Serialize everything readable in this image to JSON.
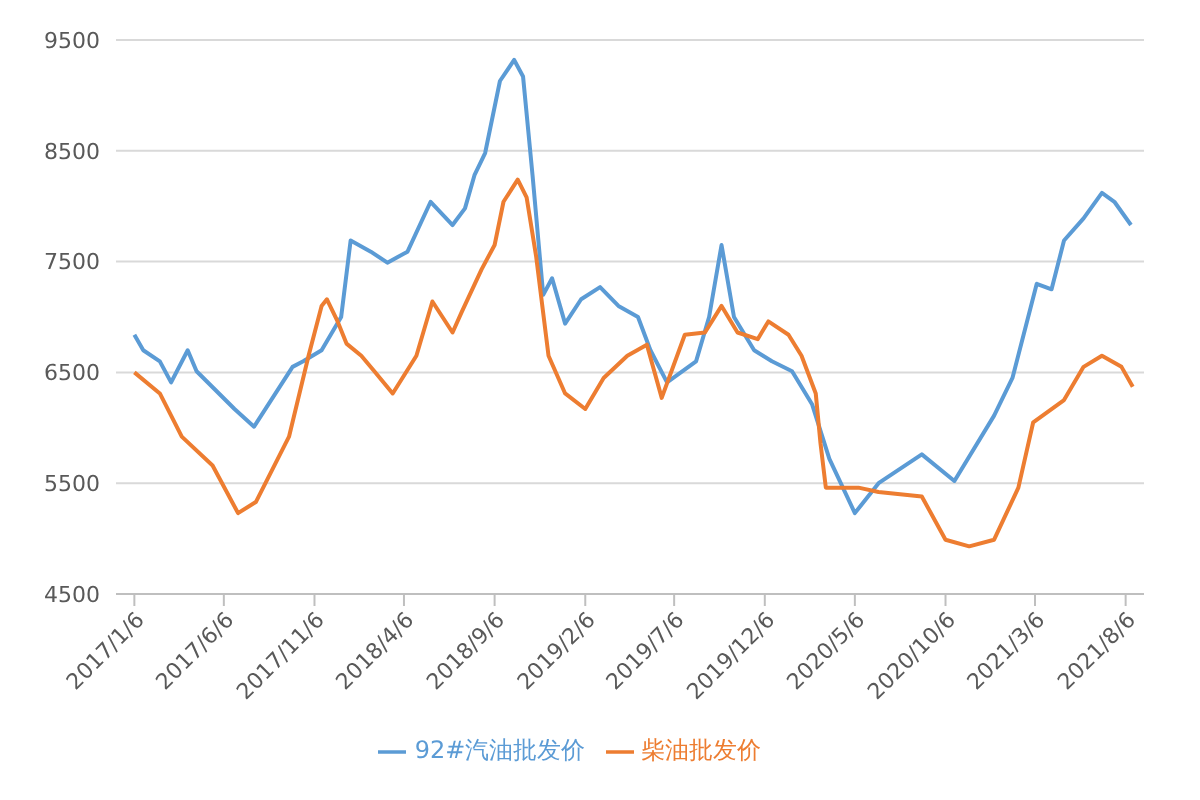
{
  "chart_data": {
    "type": "line",
    "xlim": [
      "2016-12-06",
      "2021-09-06"
    ],
    "xticks": [
      {
        "value": "2017-01-06",
        "label": "2017/1/6"
      },
      {
        "value": "2017-06-06",
        "label": "2017/6/6"
      },
      {
        "value": "2017-11-06",
        "label": "2017/11/6"
      },
      {
        "value": "2018-04-06",
        "label": "2018/4/6"
      },
      {
        "value": "2018-09-06",
        "label": "2018/9/6"
      },
      {
        "value": "2019-02-06",
        "label": "2019/2/6"
      },
      {
        "value": "2019-07-06",
        "label": "2019/7/6"
      },
      {
        "value": "2019-12-06",
        "label": "2019/12/6"
      },
      {
        "value": "2020-05-06",
        "label": "2020/5/6"
      },
      {
        "value": "2020-10-06",
        "label": "2020/10/6"
      },
      {
        "value": "2021-03-06",
        "label": "2021/3/6"
      },
      {
        "value": "2021-08-06",
        "label": "2021/8/6"
      }
    ],
    "ylim": [
      4500,
      9500
    ],
    "yticks": [
      4500,
      5500,
      6500,
      7500,
      8500,
      9500
    ],
    "grid": "y",
    "legend": "bottom",
    "series": [
      {
        "name": "92#汽油批发价",
        "color": "#5b9bd5",
        "x": [
          "2017-01-06",
          "2017-01-21",
          "2017-02-18",
          "2017-03-09",
          "2017-04-06",
          "2017-04-21",
          "2017-06-24",
          "2017-07-27",
          "2017-09-30",
          "2017-10-18",
          "2017-11-18",
          "2017-12-21",
          "2018-01-06",
          "2018-02-09",
          "2018-03-09",
          "2018-04-12",
          "2018-05-21",
          "2018-06-27",
          "2018-07-18",
          "2018-08-03",
          "2018-08-21",
          "2018-09-15",
          "2018-10-09",
          "2018-10-24",
          "2018-11-09",
          "2018-11-27",
          "2018-12-12",
          "2019-01-03",
          "2019-01-30",
          "2019-03-03",
          "2019-04-03",
          "2019-05-06",
          "2019-05-27",
          "2019-06-24",
          "2019-08-12",
          "2019-09-03",
          "2019-09-24",
          "2019-10-15",
          "2019-11-18",
          "2019-12-18",
          "2020-01-21",
          "2020-02-24",
          "2020-03-24",
          "2020-05-06",
          "2020-06-15",
          "2020-08-27",
          "2020-10-21",
          "2020-12-27",
          "2021-01-27",
          "2021-03-09",
          "2021-04-03",
          "2021-04-24",
          "2021-05-27",
          "2021-06-27",
          "2021-07-18",
          "2021-08-15"
        ],
        "values": [
          6840,
          6700,
          6600,
          6410,
          6700,
          6510,
          6170,
          6010,
          6550,
          6600,
          6700,
          7000,
          7690,
          7590,
          7490,
          7590,
          8040,
          7830,
          7980,
          8280,
          8480,
          9130,
          9320,
          9170,
          8280,
          7200,
          7350,
          6940,
          7160,
          7270,
          7100,
          7000,
          6700,
          6410,
          6600,
          7000,
          7650,
          7000,
          6700,
          6600,
          6510,
          6210,
          5720,
          5230,
          5500,
          5760,
          5520,
          6110,
          6450,
          7300,
          7250,
          7690,
          7890,
          8120,
          8040,
          7830
        ]
      },
      {
        "name": "柴油批发价",
        "color": "#ed7d31",
        "x": [
          "2017-01-06",
          "2017-02-18",
          "2017-03-27",
          "2017-05-18",
          "2017-06-30",
          "2017-07-30",
          "2017-09-24",
          "2017-10-27",
          "2017-11-18",
          "2017-11-27",
          "2017-12-15",
          "2017-12-30",
          "2018-01-24",
          "2018-02-15",
          "2018-03-18",
          "2018-04-27",
          "2018-05-24",
          "2018-06-27",
          "2018-07-12",
          "2018-08-15",
          "2018-09-06",
          "2018-09-21",
          "2018-10-15",
          "2018-10-30",
          "2018-11-15",
          "2018-12-06",
          "2019-01-03",
          "2019-02-06",
          "2019-03-09",
          "2019-04-18",
          "2019-05-21",
          "2019-06-15",
          "2019-07-24",
          "2019-08-27",
          "2019-09-24",
          "2019-10-21",
          "2019-11-24",
          "2019-12-12",
          "2020-01-15",
          "2020-02-06",
          "2020-03-01",
          "2020-03-09",
          "2020-03-18",
          "2020-05-12",
          "2020-06-15",
          "2020-08-27",
          "2020-10-06",
          "2020-11-15",
          "2020-12-27",
          "2021-02-06",
          "2021-03-03",
          "2021-04-24",
          "2021-05-27",
          "2021-06-27",
          "2021-07-30",
          "2021-08-18"
        ],
        "values": [
          6500,
          6310,
          5920,
          5660,
          5230,
          5330,
          5920,
          6650,
          7100,
          7160,
          6960,
          6760,
          6650,
          6510,
          6310,
          6650,
          7140,
          6860,
          7040,
          7430,
          7650,
          8040,
          8240,
          8080,
          7550,
          6650,
          6310,
          6170,
          6450,
          6650,
          6750,
          6270,
          6840,
          6860,
          7100,
          6860,
          6800,
          6960,
          6840,
          6650,
          6310,
          5860,
          5460,
          5460,
          5420,
          5380,
          4990,
          4930,
          4990,
          5460,
          6050,
          6250,
          6550,
          6650,
          6550,
          6370
        ]
      }
    ]
  }
}
